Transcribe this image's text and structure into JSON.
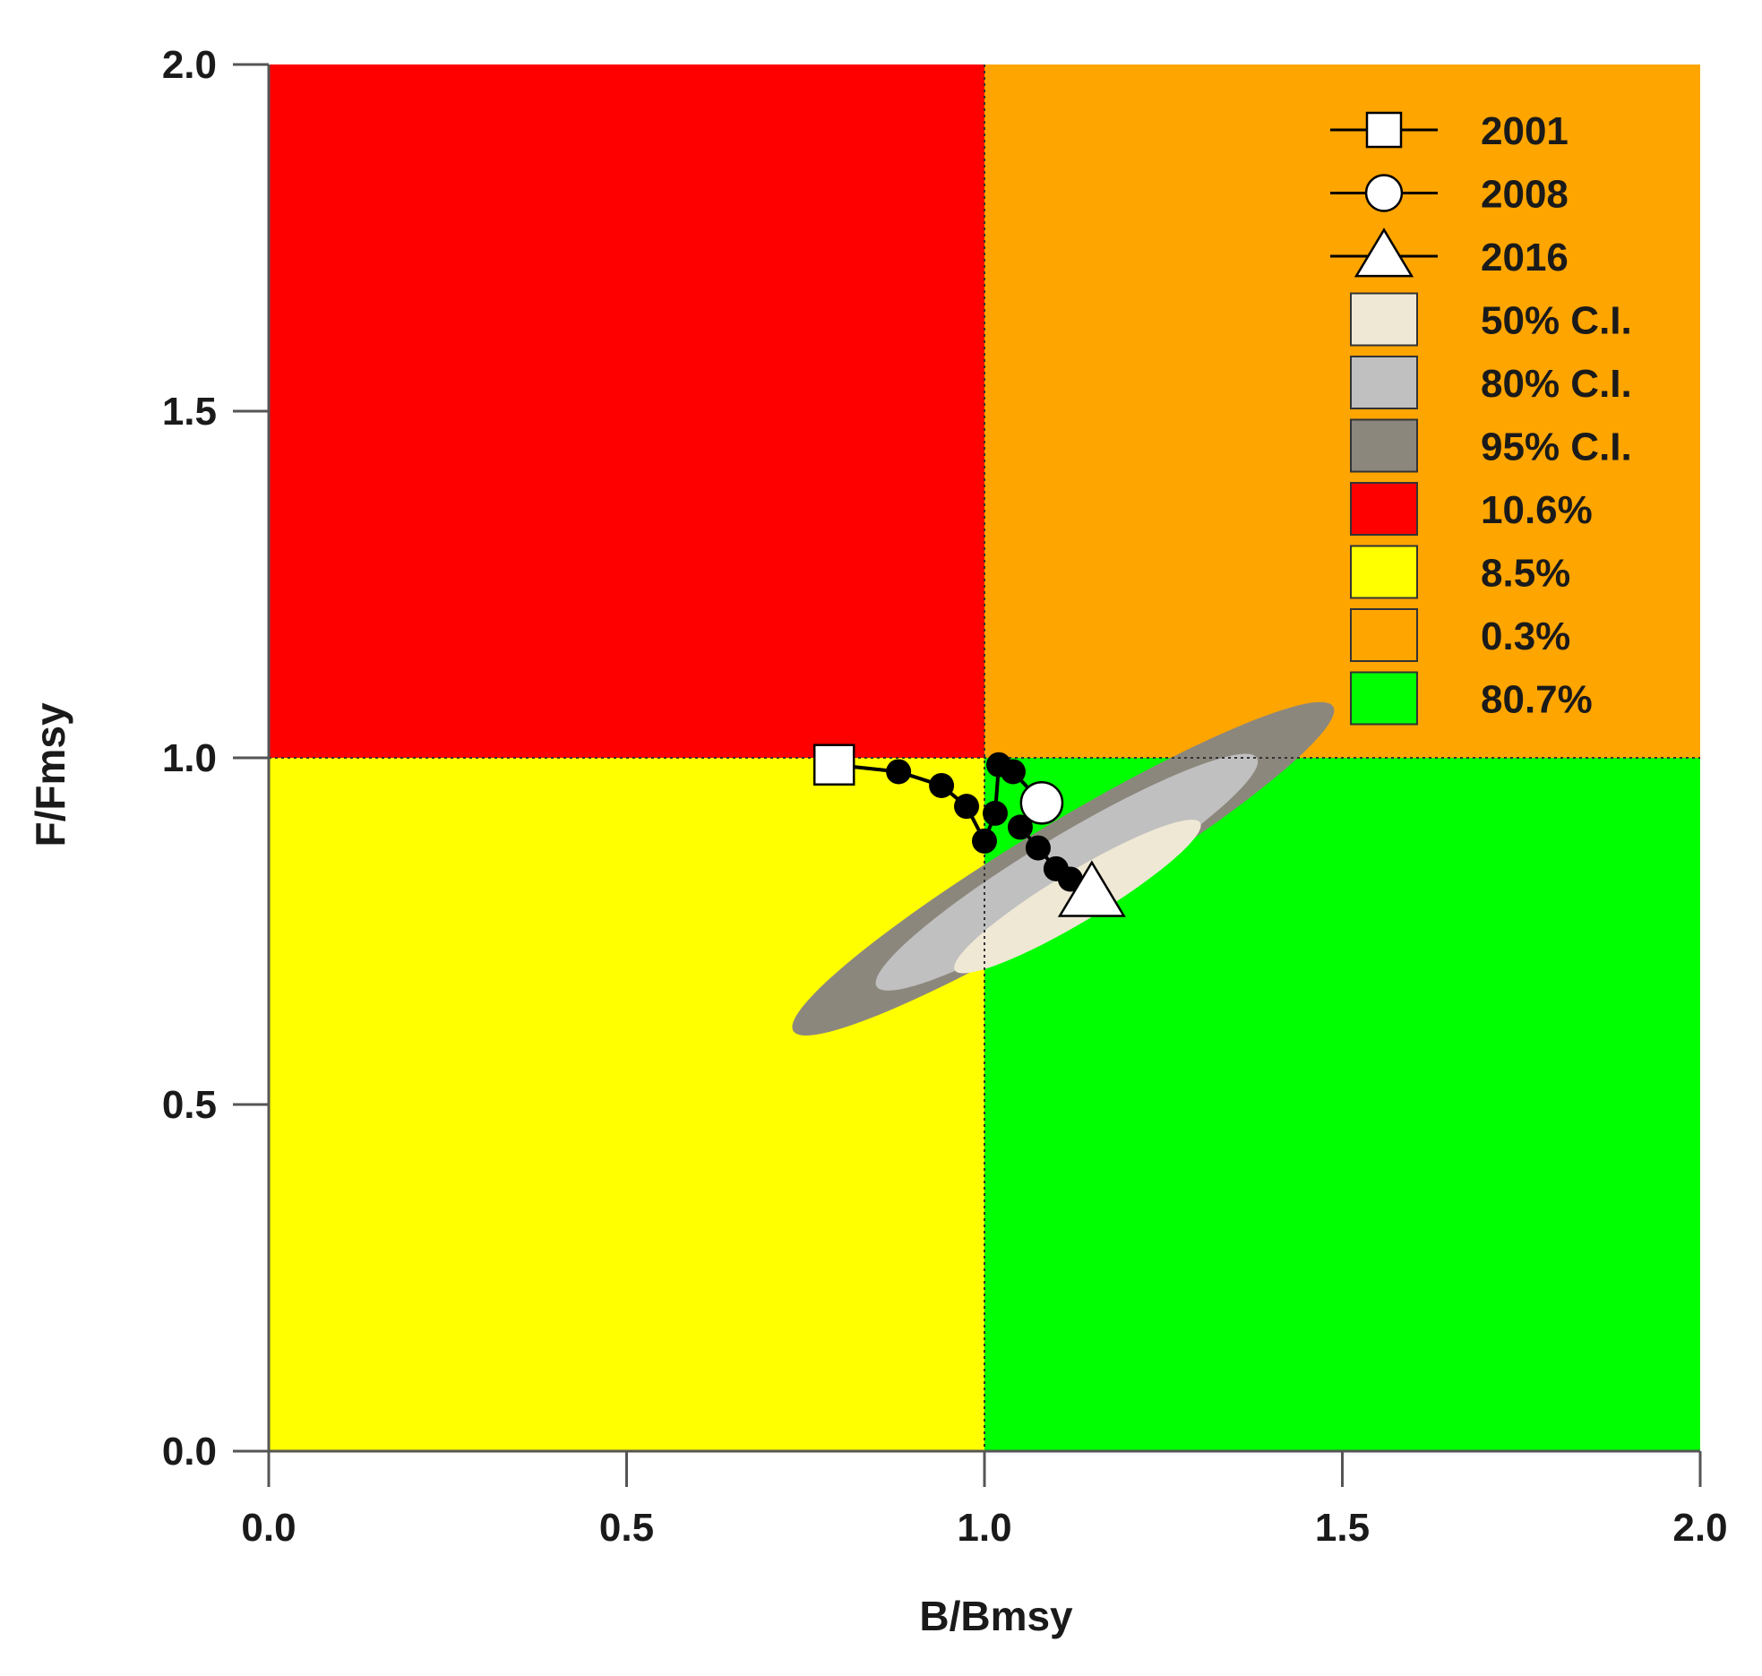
{
  "chart_data": {
    "type": "scatter",
    "title": "",
    "xlabel": "B/Bmsy",
    "ylabel": "F/Fmsy",
    "xlim": [
      0,
      2
    ],
    "ylim": [
      0,
      2
    ],
    "xticks": [
      "0.0",
      "0.5",
      "1.0",
      "1.5",
      "2.0"
    ],
    "yticks": [
      "0.0",
      "0.5",
      "1.0",
      "1.5",
      "2.0"
    ],
    "reference_lines": {
      "x": 1.0,
      "y": 1.0
    },
    "quadrants": [
      {
        "name": "red",
        "x_range": [
          0,
          1
        ],
        "y_range": [
          1,
          2
        ],
        "color": "#ff0000",
        "label": "10.6%"
      },
      {
        "name": "orange",
        "x_range": [
          1,
          2
        ],
        "y_range": [
          1,
          2
        ],
        "color": "#ffa500",
        "label": "0.3%"
      },
      {
        "name": "yellow",
        "x_range": [
          0,
          1
        ],
        "y_range": [
          0,
          1
        ],
        "color": "#ffff00",
        "label": "8.5%"
      },
      {
        "name": "green",
        "x_range": [
          1,
          2
        ],
        "y_range": [
          0,
          1
        ],
        "color": "#00ff00",
        "label": "80.7%"
      }
    ],
    "confidence_regions": [
      {
        "name": "95% C.I.",
        "color": "#8c877d",
        "center": [
          1.11,
          0.84
        ],
        "semi_major": 0.44,
        "semi_minor": 0.065,
        "angle_deg": -31
      },
      {
        "name": "80% C.I.",
        "color": "#c0c0c0",
        "center": [
          1.115,
          0.835
        ],
        "semi_major": 0.31,
        "semi_minor": 0.052,
        "angle_deg": -31
      },
      {
        "name": "50% C.I.",
        "color": "#efe8d5",
        "center": [
          1.13,
          0.8
        ],
        "semi_major": 0.2,
        "semi_minor": 0.036,
        "angle_deg": -31
      }
    ],
    "trajectory": {
      "color": "#000000",
      "points": [
        {
          "year": "2001",
          "x": 0.79,
          "y": 0.99,
          "marker": "square"
        },
        {
          "x": 0.88,
          "y": 0.98
        },
        {
          "x": 0.94,
          "y": 0.96
        },
        {
          "x": 0.975,
          "y": 0.93
        },
        {
          "x": 1.0,
          "y": 0.88
        },
        {
          "x": 1.015,
          "y": 0.92
        },
        {
          "x": 1.02,
          "y": 0.99
        },
        {
          "x": 1.04,
          "y": 0.98
        },
        {
          "year": "2008",
          "x": 1.08,
          "y": 0.935,
          "marker": "circle"
        },
        {
          "x": 1.05,
          "y": 0.9
        },
        {
          "x": 1.075,
          "y": 0.87
        },
        {
          "x": 1.1,
          "y": 0.84
        },
        {
          "x": 1.12,
          "y": 0.825
        },
        {
          "year": "2016",
          "x": 1.15,
          "y": 0.805,
          "marker": "triangle"
        }
      ]
    },
    "legend": {
      "position": "top-right",
      "entries": [
        {
          "label": "2001",
          "kind": "line-marker",
          "marker": "square"
        },
        {
          "label": "2008",
          "kind": "line-marker",
          "marker": "circle"
        },
        {
          "label": "2016",
          "kind": "line-marker",
          "marker": "triangle"
        },
        {
          "label": "50% C.I.",
          "kind": "swatch",
          "color": "#efe8d5"
        },
        {
          "label": "80% C.I.",
          "kind": "swatch",
          "color": "#c0c0c0"
        },
        {
          "label": "95% C.I.",
          "kind": "swatch",
          "color": "#8c877d"
        },
        {
          "label": "10.6%",
          "kind": "swatch",
          "color": "#ff0000"
        },
        {
          "label": "8.5%",
          "kind": "swatch",
          "color": "#ffff00"
        },
        {
          "label": "0.3%",
          "kind": "swatch",
          "color": "#ffa500"
        },
        {
          "label": "80.7%",
          "kind": "swatch",
          "color": "#00ff00"
        }
      ]
    }
  }
}
